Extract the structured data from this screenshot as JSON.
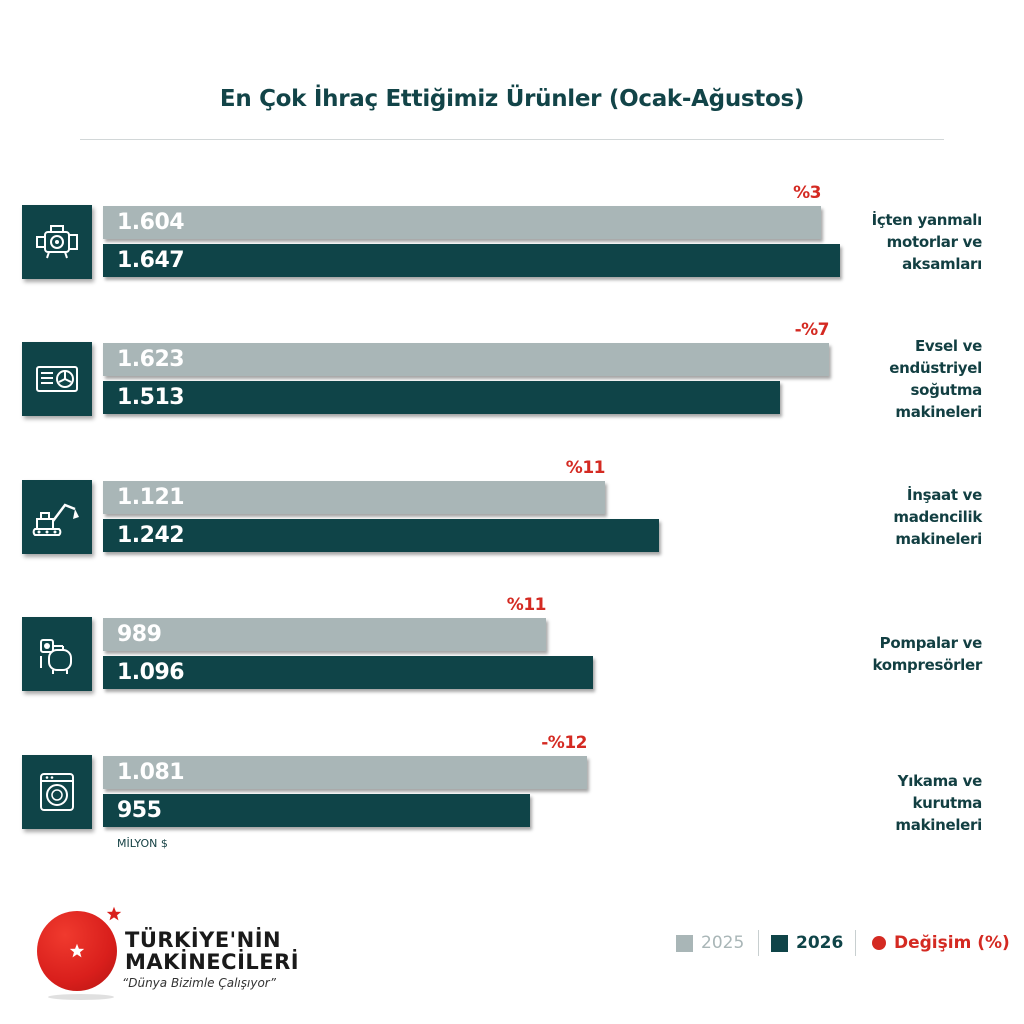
{
  "title": "En Çok İhraç Ettiğimiz Ürünler (Ocak-Ağustos)",
  "unit_label": "MİLYON $",
  "colors": {
    "y2025": "#a9b6b7",
    "y2026": "#0f4448",
    "change": "#d42a22",
    "brand_red": "#d91f1c"
  },
  "chart_data": {
    "type": "bar",
    "orientation": "horizontal",
    "title": "En Çok İhraç Ettiğimiz Ürünler (Ocak-Ağustos)",
    "unit": "MİLYON $",
    "xlim": [
      0,
      1700
    ],
    "grid": false,
    "legend_position": "bottom-right",
    "categories": [
      "İçten yanmalı motorlar ve aksamları",
      "Evsel ve endüstriyel soğutma makineleri",
      "İnşaat ve madencilik makineleri",
      "Pompalar ve kompresörler",
      "Yıkama ve kurutma makineleri"
    ],
    "series": [
      {
        "name": "2025",
        "values": [
          1604,
          1623,
          1121,
          989,
          1081
        ],
        "labels": [
          "1.604",
          "1.623",
          "1.121",
          "989",
          "1.081"
        ]
      },
      {
        "name": "2026",
        "values": [
          1647,
          1513,
          1242,
          1096,
          955
        ],
        "labels": [
          "1.647",
          "1.513",
          "1.242",
          "1.096",
          "955"
        ]
      }
    ],
    "change_labels": [
      "%3",
      "-%7",
      "%11",
      "%11",
      "-%12"
    ],
    "groups": [
      {
        "icon": "engine-icon",
        "category_lines": [
          "İçten yanmalı",
          "motorlar ve",
          "aksamları"
        ]
      },
      {
        "icon": "refrigeration-unit-icon",
        "category_lines": [
          "Evsel ve",
          "endüstriyel",
          "soğutma",
          "makineleri"
        ]
      },
      {
        "icon": "excavator-icon",
        "category_lines": [
          "İnşaat ve",
          "madencilik",
          "makineleri"
        ]
      },
      {
        "icon": "pump-icon",
        "category_lines": [
          "Pompalar ve",
          "kompresörler"
        ]
      },
      {
        "icon": "washing-machine-icon",
        "category_lines": [
          "Yıkama ve kurutma",
          "makineleri"
        ]
      }
    ]
  },
  "legend": {
    "items": [
      {
        "label": "2025"
      },
      {
        "label": "2026"
      },
      {
        "label": "Değişim (%)"
      }
    ]
  },
  "logo": {
    "line1": "TÜRKİYE'NİN",
    "line2": "MAKİNECİLERİ",
    "slogan": "“Dünya Bizimle Çalışıyor”"
  }
}
